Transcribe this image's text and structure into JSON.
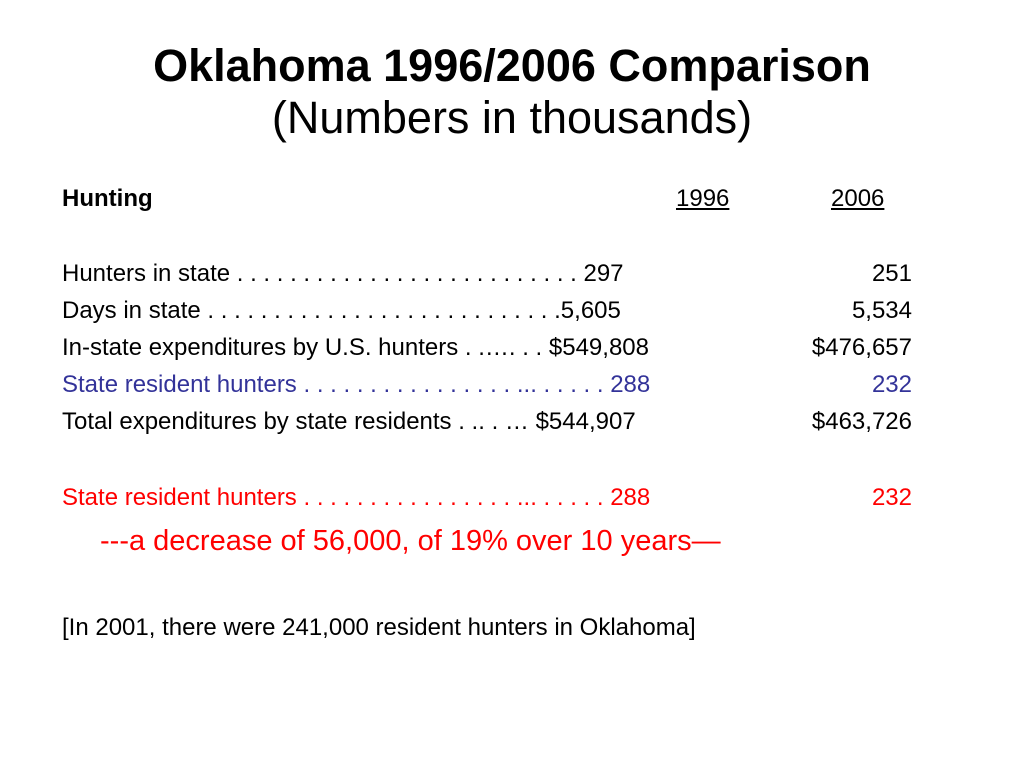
{
  "title": {
    "main": "Oklahoma 1996/2006 Comparison",
    "sub": "(Numbers in thousands)"
  },
  "table": {
    "section_label": "Hunting",
    "col_1996": "1996",
    "col_2006": "2006",
    "rows": [
      {
        "label": "Hunters in state . . . . . . . . . . . . . . . . . . . . . . . . . . 297",
        "v2006": "251"
      },
      {
        "label": "Days in state . . . . . . . . . . . . . . . . . . . . . . . . . . .5,605",
        "v2006": "5,534"
      },
      {
        "label": "In-state expenditures by U.S. hunters . .…. . . $549,808",
        "v2006": "$476,657"
      },
      {
        "label": "State resident hunters . . . . . . . . . . . . . . . . ... . . . . . 288",
        "v2006": "232"
      },
      {
        "label": "Total expenditures by state residents . .. . … $544,907",
        "v2006": "$463,726"
      }
    ]
  },
  "highlight": {
    "label": "State resident hunters . . . . . . . . . . . . . . . . ... . . . . . 288",
    "v2006": "232",
    "note": "---a decrease of 56,000, of 19% over 10 years—"
  },
  "footnote": "[In 2001, there were 241,000 resident hunters in Oklahoma]",
  "colors": {
    "title": "#000000",
    "blue_row": "#333399",
    "highlight": "#ff0000"
  }
}
